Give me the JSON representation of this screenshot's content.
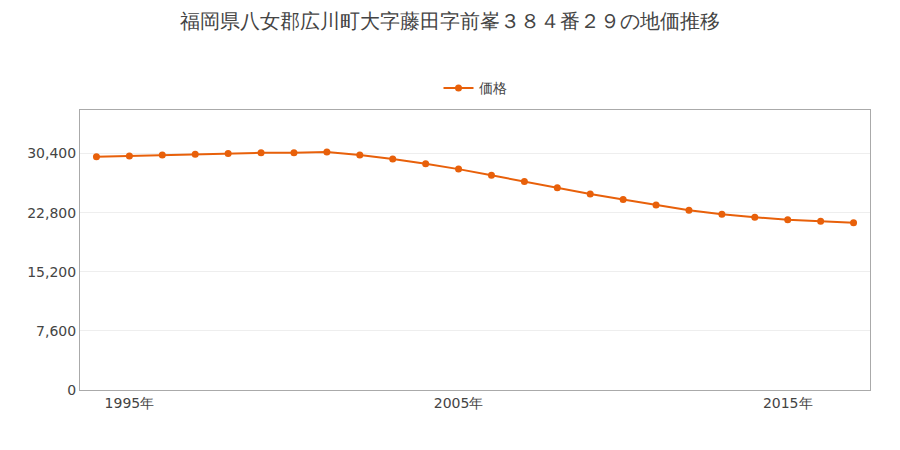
{
  "chart_data": {
    "type": "line",
    "title": "福岡県八女郡広川町大字藤田字前峯３８４番２９の地価推移",
    "x": [
      1994,
      1995,
      1996,
      1997,
      1998,
      1999,
      2000,
      2001,
      2002,
      2003,
      2004,
      2005,
      2006,
      2007,
      2008,
      2009,
      2010,
      2011,
      2012,
      2013,
      2014,
      2015,
      2016,
      2017
    ],
    "series": [
      {
        "name": "価格",
        "color": "#e8600a",
        "marker": "circle",
        "values": [
          30000,
          30100,
          30200,
          30300,
          30400,
          30500,
          30500,
          30600,
          30200,
          29700,
          29100,
          28400,
          27600,
          26800,
          26000,
          25200,
          24500,
          23800,
          23100,
          22600,
          22200,
          21900,
          21700,
          21500
        ]
      }
    ],
    "xlim": [
      1993.5,
      2017.5
    ],
    "xticks": [
      {
        "value": 1995,
        "label": "1995年"
      },
      {
        "value": 2005,
        "label": "2005年"
      },
      {
        "value": 2015,
        "label": "2015年"
      }
    ],
    "ylim": [
      0,
      36000
    ],
    "yticks": [
      0,
      {
        "value": 7600,
        "label": "7,600"
      },
      {
        "value": 15200,
        "label": "15,200"
      },
      {
        "value": 22800,
        "label": "22,800"
      },
      {
        "value": 30400,
        "label": "30,400"
      }
    ],
    "grid": "y",
    "legend": "top"
  }
}
